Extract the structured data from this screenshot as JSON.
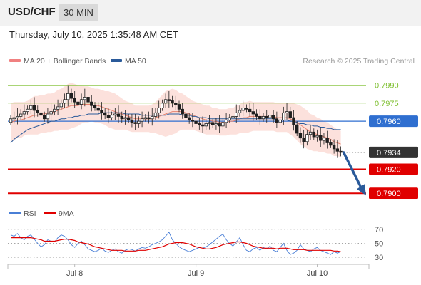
{
  "header": {
    "symbol": "USD/CHF",
    "timeframe": "30 MIN",
    "timestamp": "Thursday, July 10, 2025 1:35:48 AM CET"
  },
  "legend": {
    "bollinger": {
      "label": "MA 20 + Bollinger Bands",
      "color": "#f08080"
    },
    "ma50": {
      "label": "MA 50",
      "color": "#2a5a9a"
    },
    "credit": "Research © 2025 Trading Central"
  },
  "chart_data": [
    {
      "type": "candlestick",
      "title": "USD/CHF",
      "ylim": [
        0.7893,
        0.8004
      ],
      "x_ticks": [
        {
          "label": "Jul 8",
          "index": 19
        },
        {
          "label": "Jul 9",
          "index": 55
        },
        {
          "label": "Jul 10",
          "index": 91
        }
      ],
      "close": [
        0.7962,
        0.7963,
        0.7964,
        0.7966,
        0.7968,
        0.797,
        0.7973,
        0.7969,
        0.7967,
        0.7965,
        0.7962,
        0.7966,
        0.7968,
        0.797,
        0.7972,
        0.7975,
        0.7978,
        0.7983,
        0.7979,
        0.7976,
        0.7974,
        0.7978,
        0.798,
        0.7976,
        0.7973,
        0.7971,
        0.7969,
        0.7967,
        0.7965,
        0.7963,
        0.7965,
        0.7966,
        0.7964,
        0.7962,
        0.7963,
        0.7961,
        0.7959,
        0.7958,
        0.796,
        0.7962,
        0.7963,
        0.7962,
        0.7964,
        0.7967,
        0.7971,
        0.7975,
        0.7978,
        0.7977,
        0.7975,
        0.7974,
        0.797,
        0.7966,
        0.7963,
        0.7961,
        0.796,
        0.7958,
        0.7957,
        0.7956,
        0.7958,
        0.7959,
        0.7957,
        0.7958,
        0.7956,
        0.7959,
        0.7961,
        0.7963,
        0.7964,
        0.7967,
        0.7969,
        0.7971,
        0.797,
        0.7968,
        0.7966,
        0.7964,
        0.7962,
        0.7964,
        0.7963,
        0.7965,
        0.7962,
        0.7959,
        0.7961,
        0.7967,
        0.7968,
        0.7963,
        0.7957,
        0.795,
        0.7946,
        0.7943,
        0.7949,
        0.7951,
        0.7947,
        0.7948,
        0.7944,
        0.7946,
        0.7942,
        0.794,
        0.7937,
        0.7935,
        0.7934
      ],
      "ma20": [
        0.7959,
        0.796,
        0.7961,
        0.7961,
        0.7962,
        0.7963,
        0.7964,
        0.7965,
        0.7965,
        0.7966,
        0.7966,
        0.7967,
        0.7967,
        0.7968,
        0.7969,
        0.797,
        0.7971,
        0.7972,
        0.7973,
        0.7973,
        0.7973,
        0.7974,
        0.7974,
        0.7974,
        0.7974,
        0.7973,
        0.7973,
        0.7972,
        0.7971,
        0.797,
        0.7969,
        0.7968,
        0.7967,
        0.7966,
        0.7965,
        0.7964,
        0.7963,
        0.7962,
        0.7962,
        0.7962,
        0.7962,
        0.7962,
        0.7962,
        0.7963,
        0.7964,
        0.7965,
        0.7966,
        0.7967,
        0.7968,
        0.7968,
        0.7968,
        0.7968,
        0.7967,
        0.7966,
        0.7965,
        0.7964,
        0.7963,
        0.7962,
        0.7961,
        0.7961,
        0.796,
        0.796,
        0.7959,
        0.7959,
        0.7959,
        0.796,
        0.796,
        0.7961,
        0.7962,
        0.7963,
        0.7963,
        0.7964,
        0.7964,
        0.7964,
        0.7964,
        0.7964,
        0.7964,
        0.7964,
        0.7964,
        0.7963,
        0.7963,
        0.7963,
        0.7963,
        0.7962,
        0.7961,
        0.7959,
        0.7957,
        0.7955,
        0.7953,
        0.7951,
        0.795,
        0.7949,
        0.7948,
        0.7947,
        0.7946,
        0.7945,
        0.7943,
        0.7942,
        0.7941
      ],
      "band_width": [
        0.0016,
        0.0016,
        0.0015,
        0.0015,
        0.0014,
        0.0014,
        0.0015,
        0.0016,
        0.0016,
        0.0016,
        0.0016,
        0.0016,
        0.0016,
        0.0016,
        0.0017,
        0.0017,
        0.0018,
        0.0019,
        0.0019,
        0.0018,
        0.0017,
        0.0016,
        0.0015,
        0.0015,
        0.0014,
        0.0014,
        0.0014,
        0.0014,
        0.0014,
        0.0015,
        0.0015,
        0.0015,
        0.0014,
        0.0013,
        0.0012,
        0.0012,
        0.0012,
        0.0011,
        0.0011,
        0.0011,
        0.0011,
        0.0011,
        0.0012,
        0.0013,
        0.0015,
        0.0017,
        0.0019,
        0.0019,
        0.0019,
        0.0018,
        0.0016,
        0.0015,
        0.0014,
        0.0013,
        0.0012,
        0.0012,
        0.0012,
        0.0012,
        0.0012,
        0.0012,
        0.0011,
        0.0011,
        0.0011,
        0.0011,
        0.0011,
        0.0011,
        0.0011,
        0.0012,
        0.0012,
        0.0013,
        0.0013,
        0.0013,
        0.0012,
        0.0012,
        0.0012,
        0.0012,
        0.0012,
        0.0012,
        0.0012,
        0.0012,
        0.0012,
        0.0012,
        0.0012,
        0.0013,
        0.0014,
        0.0015,
        0.0016,
        0.0016,
        0.0016,
        0.0015,
        0.0015,
        0.0014,
        0.0014,
        0.0013,
        0.0013,
        0.0012,
        0.0012,
        0.0011,
        0.0011
      ],
      "ma50": [
        0.7942,
        0.7945,
        0.7947,
        0.7949,
        0.7951,
        0.7953,
        0.7954,
        0.7955,
        0.7956,
        0.7957,
        0.7958,
        0.7959,
        0.796,
        0.796,
        0.7961,
        0.7962,
        0.7962,
        0.7963,
        0.7963,
        0.7964,
        0.7964,
        0.7965,
        0.7965,
        0.7966,
        0.7966,
        0.7966,
        0.7966,
        0.7967,
        0.7967,
        0.7967,
        0.7967,
        0.7967,
        0.7967,
        0.7967,
        0.7966,
        0.7966,
        0.7966,
        0.7966,
        0.7966,
        0.7965,
        0.7965,
        0.7965,
        0.7965,
        0.7965,
        0.7965,
        0.7965,
        0.7965,
        0.7966,
        0.7966,
        0.7966,
        0.7966,
        0.7965,
        0.7965,
        0.7965,
        0.7964,
        0.7964,
        0.7963,
        0.7963,
        0.7963,
        0.7962,
        0.7962,
        0.7962,
        0.7962,
        0.7962,
        0.7962,
        0.7962,
        0.7962,
        0.7962,
        0.7962,
        0.7962,
        0.7962,
        0.7962,
        0.7962,
        0.7962,
        0.7962,
        0.7962,
        0.7962,
        0.7962,
        0.7962,
        0.7961,
        0.7961,
        0.7961,
        0.7961,
        0.796,
        0.796,
        0.7959,
        0.7958,
        0.7958,
        0.7957,
        0.7957,
        0.7956,
        0.7956,
        0.7955,
        0.7955,
        0.7954,
        0.7954,
        0.7953,
        0.7953,
        0.7953
      ],
      "levels": [
        {
          "value": 0.799,
          "label": "0.7990",
          "kind": "resistance",
          "color": "#7dbf2e"
        },
        {
          "value": 0.7975,
          "label": "0.7975",
          "kind": "resistance",
          "color": "#7dbf2e"
        },
        {
          "value": 0.796,
          "label": "0.7960",
          "kind": "pivot",
          "color": "#2f6fd0"
        },
        {
          "value": 0.7934,
          "label": "0.7934",
          "kind": "last",
          "color": "#333333"
        },
        {
          "value": 0.792,
          "label": "0.7920",
          "kind": "support",
          "color": "#e00000"
        },
        {
          "value": 0.79,
          "label": "0.7900",
          "kind": "support",
          "color": "#e00000"
        }
      ],
      "projection": {
        "from_index": 98,
        "from": 0.7934,
        "to": 0.79
      }
    },
    {
      "type": "line",
      "series": [
        {
          "name": "RSI",
          "color": "#4a7fd6",
          "values": [
            62,
            60,
            64,
            58,
            55,
            60,
            62,
            56,
            50,
            45,
            48,
            55,
            53,
            52,
            58,
            62,
            60,
            55,
            48,
            44,
            50,
            53,
            48,
            42,
            40,
            38,
            40,
            43,
            39,
            37,
            40,
            42,
            38,
            36,
            40,
            42,
            41,
            39,
            42,
            44,
            43,
            45,
            48,
            50,
            52,
            55,
            60,
            66,
            55,
            50,
            45,
            42,
            40,
            38,
            40,
            42,
            44,
            43,
            45,
            48,
            52,
            56,
            60,
            63,
            55,
            50,
            46,
            52,
            58,
            48,
            40,
            38,
            42,
            44,
            40,
            44,
            42,
            46,
            40,
            38,
            44,
            50,
            40,
            34,
            36,
            40,
            48,
            42,
            40,
            38,
            42,
            44,
            40,
            38,
            36,
            34,
            38,
            36,
            38
          ]
        },
        {
          "name": "9MA",
          "color": "#e00000",
          "values": [
            58,
            58,
            58,
            58,
            58,
            58,
            58,
            57,
            56,
            55,
            53,
            53,
            53,
            53,
            54,
            55,
            56,
            56,
            55,
            54,
            52,
            51,
            50,
            49,
            47,
            45,
            44,
            43,
            42,
            41,
            40,
            40,
            40,
            40,
            39,
            39,
            39,
            39,
            40,
            40,
            40,
            41,
            42,
            43,
            44,
            45,
            47,
            49,
            50,
            51,
            51,
            51,
            50,
            49,
            47,
            45,
            44,
            43,
            42,
            42,
            43,
            44,
            46,
            48,
            49,
            50,
            51,
            52,
            52,
            51,
            50,
            48,
            46,
            45,
            44,
            43,
            43,
            43,
            43,
            42,
            43,
            43,
            43,
            42,
            41,
            41,
            41,
            41,
            40,
            40,
            40,
            40,
            40,
            40,
            40,
            40,
            39,
            39,
            38
          ]
        }
      ],
      "y_ticks": [
        70,
        50,
        30
      ],
      "ylim": [
        25,
        80
      ]
    }
  ]
}
